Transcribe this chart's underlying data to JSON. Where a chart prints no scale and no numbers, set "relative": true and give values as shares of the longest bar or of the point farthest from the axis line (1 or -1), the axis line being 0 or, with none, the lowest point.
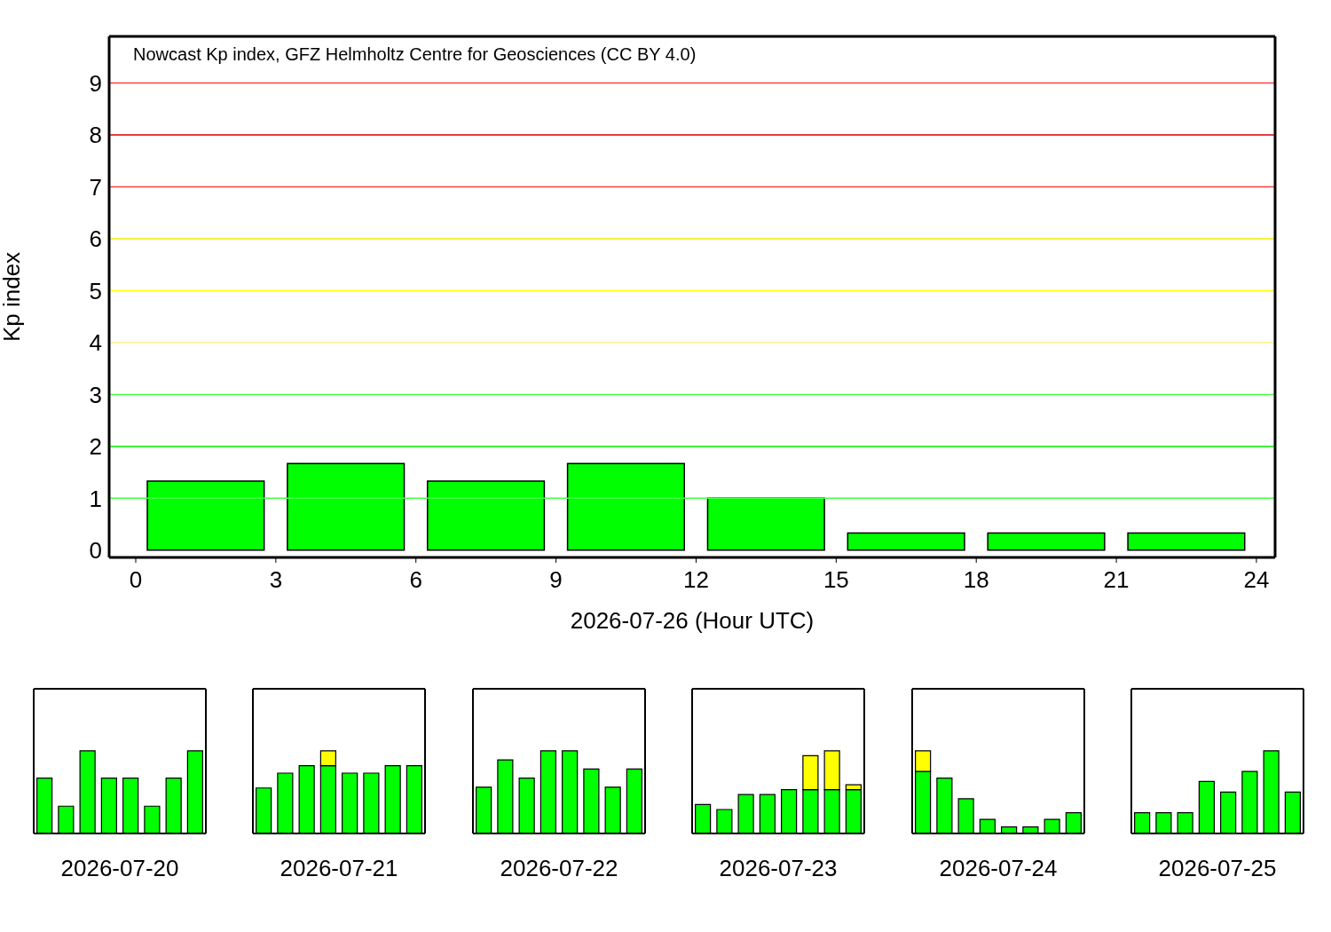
{
  "chart_data": [
    {
      "type": "bar",
      "ylabel": "Kp index",
      "xlabel": "2026-07-26 (Hour UTC)",
      "annotations": [
        "Nowcast Kp index, GFZ Helmholtz Centre for Geosciences (CC BY 4.0)"
      ],
      "x": [
        1.5,
        4.5,
        7.5,
        10.5,
        13.5,
        16.5,
        19.5,
        22.5
      ],
      "series": [
        {
          "color": "#00ff00",
          "values": [
            1.33,
            1.67,
            1.33,
            1.67,
            1,
            0.33,
            0.33,
            0.33
          ]
        }
      ],
      "xlim": [
        -0.57,
        24.4
      ],
      "xticks": [
        0,
        3,
        6,
        9,
        12,
        15,
        18,
        21,
        24
      ],
      "ylim": [
        -0.14,
        9.9
      ],
      "yticks": [
        0,
        1,
        2,
        3,
        4,
        5,
        6,
        7,
        8,
        9
      ],
      "ref_lines": [
        {
          "axis": "y",
          "value": 1,
          "color": "#44ff44"
        },
        {
          "axis": "y",
          "value": 2,
          "color": "#00ee00"
        },
        {
          "axis": "y",
          "value": 3,
          "color": "#44ff44"
        },
        {
          "axis": "y",
          "value": 4,
          "color": "#ffee88"
        },
        {
          "axis": "y",
          "value": 5,
          "color": "#ffff00"
        },
        {
          "axis": "y",
          "value": 6,
          "color": "#eeee00"
        },
        {
          "axis": "y",
          "value": 7,
          "color": "#ff4040"
        },
        {
          "axis": "y",
          "value": 8,
          "color": "#dd0000"
        },
        {
          "axis": "y",
          "value": 9,
          "color": "#ff4040"
        }
      ]
    },
    {
      "type": "bar",
      "xlabel": "2026-07-20",
      "stacked": true,
      "relative": true,
      "tick_labels": false,
      "categories": [
        null,
        null,
        null,
        null,
        null,
        null,
        null,
        null
      ],
      "series": [
        {
          "color": "#00ff00",
          "values": [
            0.67,
            0.33,
            1,
            0.67,
            0.67,
            0.33,
            0.67,
            1
          ]
        },
        {
          "color": "#ffff00",
          "values": [
            null,
            null,
            null,
            null,
            null,
            null,
            null,
            null
          ]
        }
      ]
    },
    {
      "type": "bar",
      "xlabel": "2026-07-21",
      "stacked": true,
      "relative": true,
      "tick_labels": false,
      "categories": [
        null,
        null,
        null,
        null,
        null,
        null,
        null,
        null
      ],
      "series": [
        {
          "color": "#00ff00",
          "values": [
            0.55,
            0.73,
            0.82,
            0.82,
            0.73,
            0.73,
            0.82,
            0.82
          ]
        },
        {
          "color": "#ffff00",
          "values": [
            null,
            null,
            null,
            0.18,
            null,
            null,
            null,
            null
          ]
        }
      ]
    },
    {
      "type": "bar",
      "xlabel": "2026-07-22",
      "stacked": true,
      "relative": true,
      "tick_labels": false,
      "categories": [
        null,
        null,
        null,
        null,
        null,
        null,
        null,
        null
      ],
      "series": [
        {
          "color": "#00ff00",
          "values": [
            0.56,
            0.89,
            0.67,
            1,
            1,
            0.78,
            0.56,
            0.78
          ]
        },
        {
          "color": "#ffff00",
          "values": [
            null,
            null,
            null,
            null,
            null,
            null,
            null,
            null
          ]
        }
      ]
    },
    {
      "type": "bar",
      "xlabel": "2026-07-23",
      "stacked": true,
      "relative": true,
      "tick_labels": false,
      "categories": [
        null,
        null,
        null,
        null,
        null,
        null,
        null,
        null
      ],
      "series": [
        {
          "color": "#00ff00",
          "values": [
            0.35,
            0.29,
            0.47,
            0.47,
            0.53,
            0.53,
            0.53,
            0.53
          ]
        },
        {
          "color": "#ffff00",
          "values": [
            null,
            null,
            null,
            null,
            null,
            0.41,
            0.47,
            0.06
          ]
        }
      ]
    },
    {
      "type": "bar",
      "xlabel": "2026-07-24",
      "stacked": true,
      "relative": true,
      "tick_labels": false,
      "categories": [
        null,
        null,
        null,
        null,
        null,
        null,
        null,
        null
      ],
      "series": [
        {
          "color": "#00ff00",
          "values": [
            0.75,
            0.67,
            0.42,
            0.17,
            0.08,
            0.08,
            0.17,
            0.25
          ]
        },
        {
          "color": "#ffff00",
          "values": [
            0.25,
            null,
            null,
            null,
            null,
            null,
            null,
            null
          ]
        }
      ]
    },
    {
      "type": "bar",
      "xlabel": "2026-07-25",
      "stacked": true,
      "relative": true,
      "tick_labels": false,
      "categories": [
        null,
        null,
        null,
        null,
        null,
        null,
        null,
        null
      ],
      "series": [
        {
          "color": "#00ff00",
          "values": [
            0.25,
            0.25,
            0.25,
            0.63,
            0.5,
            0.75,
            1,
            0.5
          ]
        },
        {
          "color": "#ffff00",
          "values": [
            null,
            null,
            null,
            null,
            null,
            null,
            null,
            null
          ]
        }
      ]
    }
  ]
}
